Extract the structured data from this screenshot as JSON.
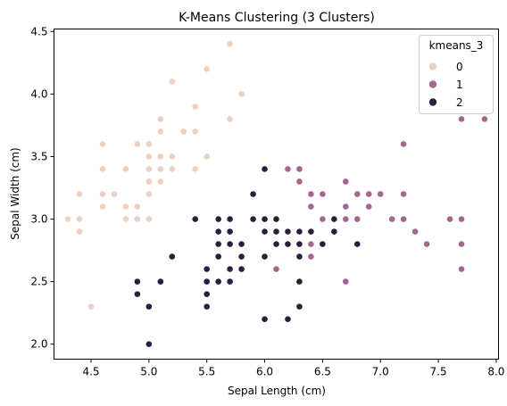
{
  "chart_data": {
    "type": "scatter",
    "title": "K-Means Clustering (3 Clusters)",
    "xlabel": "Sepal Length (cm)",
    "ylabel": "Sepal Width (cm)",
    "xlim": [
      4.18,
      8.02
    ],
    "ylim": [
      1.88,
      4.52
    ],
    "xticks": [
      "4.5",
      "5.0",
      "5.5",
      "6.0",
      "6.5",
      "7.0",
      "7.5",
      "8.0"
    ],
    "yticks": [
      "2.0",
      "2.5",
      "3.0",
      "3.5",
      "4.0",
      "4.5"
    ],
    "grid": false,
    "legend": {
      "title": "kmeans_3",
      "placement": "top-right",
      "entries": [
        "0",
        "1",
        "2"
      ]
    },
    "colors": [
      "#ecd0c4",
      "#a3668f",
      "#2d1c3b"
    ],
    "series": [
      {
        "name": "0",
        "color": "#ecd0c4",
        "points": [
          [
            4.3,
            3.0
          ],
          [
            4.4,
            3.0
          ],
          [
            4.4,
            2.9
          ],
          [
            4.4,
            3.2
          ],
          [
            4.5,
            2.3
          ],
          [
            4.6,
            3.1
          ],
          [
            4.6,
            3.2
          ],
          [
            4.6,
            3.4
          ],
          [
            4.6,
            3.6
          ],
          [
            4.7,
            3.2
          ],
          [
            4.8,
            3.0
          ],
          [
            4.8,
            3.1
          ],
          [
            4.8,
            3.4
          ],
          [
            4.9,
            3.0
          ],
          [
            4.9,
            3.1
          ],
          [
            4.9,
            3.6
          ],
          [
            5.0,
            3.0
          ],
          [
            5.0,
            3.2
          ],
          [
            5.0,
            3.3
          ],
          [
            5.0,
            3.4
          ],
          [
            5.0,
            3.5
          ],
          [
            5.0,
            3.6
          ],
          [
            5.1,
            3.3
          ],
          [
            5.1,
            3.4
          ],
          [
            5.1,
            3.5
          ],
          [
            5.1,
            3.7
          ],
          [
            5.1,
            3.8
          ],
          [
            5.2,
            3.4
          ],
          [
            5.2,
            3.5
          ],
          [
            5.2,
            4.1
          ],
          [
            5.3,
            3.7
          ],
          [
            5.4,
            3.4
          ],
          [
            5.4,
            3.7
          ],
          [
            5.4,
            3.9
          ],
          [
            5.5,
            3.5
          ],
          [
            5.5,
            4.2
          ],
          [
            5.7,
            3.8
          ],
          [
            5.7,
            4.4
          ],
          [
            5.8,
            4.0
          ]
        ]
      },
      {
        "name": "1",
        "color": "#a3668f",
        "points": [
          [
            6.1,
            2.6
          ],
          [
            6.2,
            3.4
          ],
          [
            6.3,
            3.3
          ],
          [
            6.3,
            3.4
          ],
          [
            6.4,
            2.7
          ],
          [
            6.4,
            2.8
          ],
          [
            6.4,
            3.1
          ],
          [
            6.4,
            3.2
          ],
          [
            6.5,
            3.0
          ],
          [
            6.5,
            3.2
          ],
          [
            6.7,
            2.5
          ],
          [
            6.7,
            3.0
          ],
          [
            6.7,
            3.1
          ],
          [
            6.7,
            3.3
          ],
          [
            6.8,
            3.0
          ],
          [
            6.8,
            3.2
          ],
          [
            6.9,
            3.1
          ],
          [
            6.9,
            3.2
          ],
          [
            7.0,
            3.2
          ],
          [
            7.1,
            3.0
          ],
          [
            7.2,
            3.0
          ],
          [
            7.2,
            3.2
          ],
          [
            7.2,
            3.6
          ],
          [
            7.3,
            2.9
          ],
          [
            7.4,
            2.8
          ],
          [
            7.6,
            3.0
          ],
          [
            7.7,
            2.6
          ],
          [
            7.7,
            2.8
          ],
          [
            7.7,
            3.0
          ],
          [
            7.7,
            3.8
          ],
          [
            7.9,
            3.8
          ]
        ]
      },
      {
        "name": "2",
        "color": "#2d1c3b",
        "points": [
          [
            4.9,
            2.4
          ],
          [
            4.9,
            2.5
          ],
          [
            5.0,
            2.0
          ],
          [
            5.0,
            2.3
          ],
          [
            5.1,
            2.5
          ],
          [
            5.2,
            2.7
          ],
          [
            5.4,
            3.0
          ],
          [
            5.5,
            2.3
          ],
          [
            5.5,
            2.4
          ],
          [
            5.5,
            2.5
          ],
          [
            5.5,
            2.6
          ],
          [
            5.6,
            2.5
          ],
          [
            5.6,
            2.7
          ],
          [
            5.6,
            2.8
          ],
          [
            5.6,
            2.9
          ],
          [
            5.6,
            3.0
          ],
          [
            5.7,
            2.5
          ],
          [
            5.7,
            2.6
          ],
          [
            5.7,
            2.8
          ],
          [
            5.7,
            2.9
          ],
          [
            5.7,
            3.0
          ],
          [
            5.8,
            2.6
          ],
          [
            5.8,
            2.7
          ],
          [
            5.8,
            2.8
          ],
          [
            5.9,
            3.0
          ],
          [
            5.9,
            3.2
          ],
          [
            6.0,
            2.2
          ],
          [
            6.0,
            2.7
          ],
          [
            6.0,
            2.9
          ],
          [
            6.0,
            3.0
          ],
          [
            6.0,
            3.4
          ],
          [
            6.1,
            2.8
          ],
          [
            6.1,
            2.9
          ],
          [
            6.1,
            3.0
          ],
          [
            6.2,
            2.2
          ],
          [
            6.2,
            2.8
          ],
          [
            6.2,
            2.9
          ],
          [
            6.3,
            2.3
          ],
          [
            6.3,
            2.5
          ],
          [
            6.3,
            2.7
          ],
          [
            6.3,
            2.8
          ],
          [
            6.3,
            2.9
          ],
          [
            6.4,
            2.9
          ],
          [
            6.5,
            2.8
          ],
          [
            6.6,
            2.9
          ],
          [
            6.6,
            3.0
          ],
          [
            6.8,
            2.8
          ]
        ]
      }
    ]
  }
}
